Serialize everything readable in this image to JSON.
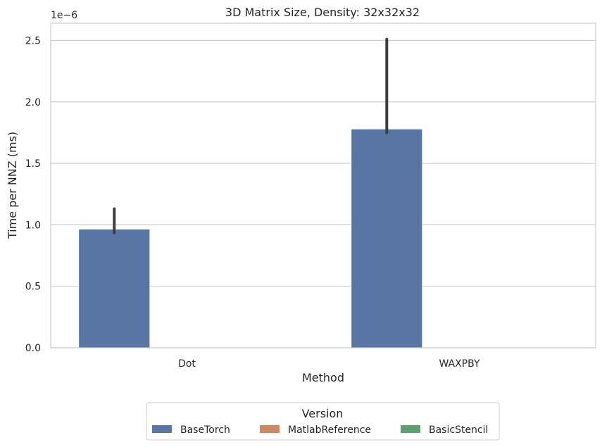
{
  "chart_data": {
    "type": "bar",
    "title": "3D Matrix Size, Density: 32x32x32",
    "xlabel": "Method",
    "ylabel": "Time per NNZ (ms)",
    "y_offset_label": "1e−6",
    "categories": [
      "Dot",
      "WAXPBY"
    ],
    "ylim": [
      0,
      2.64
    ],
    "yticks": [
      0.0,
      0.5,
      1.0,
      1.5,
      2.0,
      2.5
    ],
    "ytick_labels": [
      "0.0",
      "0.5",
      "1.0",
      "1.5",
      "2.0",
      "2.5"
    ],
    "grid": true,
    "value_scale_note": "values in units of 1e-6",
    "series": [
      {
        "name": "BaseTorch",
        "color": "#5875a4",
        "values": [
          0.965,
          1.78
        ],
        "error_low": [
          0.935,
          1.75
        ],
        "error_high": [
          1.13,
          2.51
        ]
      },
      {
        "name": "MatlabReference",
        "color": "#cc8963",
        "values": [
          0,
          0
        ]
      },
      {
        "name": "BasicStencil",
        "color": "#5f9e6e",
        "values": [
          0,
          0
        ]
      }
    ],
    "legend": {
      "title": "Version",
      "placement": "bottom-center",
      "entries": [
        "BaseTorch",
        "MatlabReference",
        "BasicStencil"
      ]
    }
  }
}
